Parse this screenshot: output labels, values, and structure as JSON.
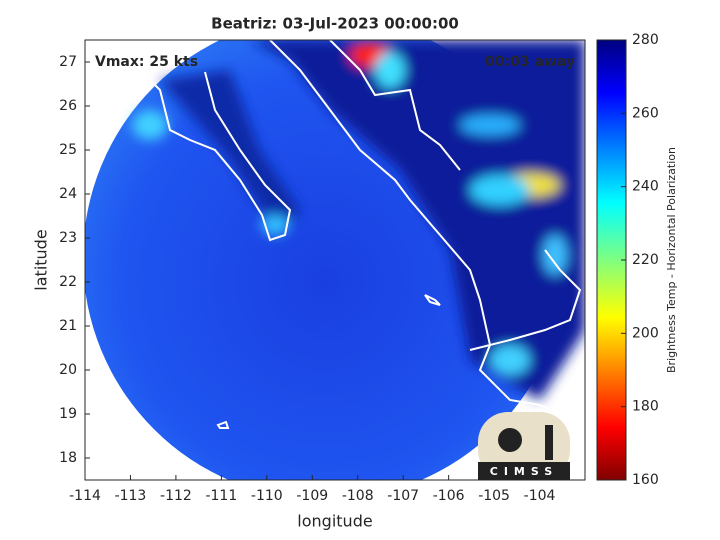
{
  "chart_data": {
    "type": "map",
    "title": "Beatriz: 03-Jul-2023 00:00:00",
    "annotations": [
      "Vmax: 25 kts",
      "00:03 away"
    ],
    "x_label": "longitude",
    "y_label": "latitude",
    "xlim": [
      -114,
      -103
    ],
    "xticks": [
      -114,
      -113,
      -112,
      -111,
      -110,
      -109,
      -108,
      -107,
      -106,
      -105,
      -104
    ],
    "ylim": [
      17.5,
      27.5
    ],
    "yticks": [
      18,
      19,
      20,
      21,
      22,
      23,
      24,
      25,
      26,
      27
    ],
    "colorbar": {
      "label": "Brightness Temp - Horizontal Polarization",
      "lim": [
        160,
        280
      ],
      "ticks": [
        160,
        180,
        200,
        220,
        240,
        260,
        280
      ]
    },
    "logo": "CIMSS"
  }
}
